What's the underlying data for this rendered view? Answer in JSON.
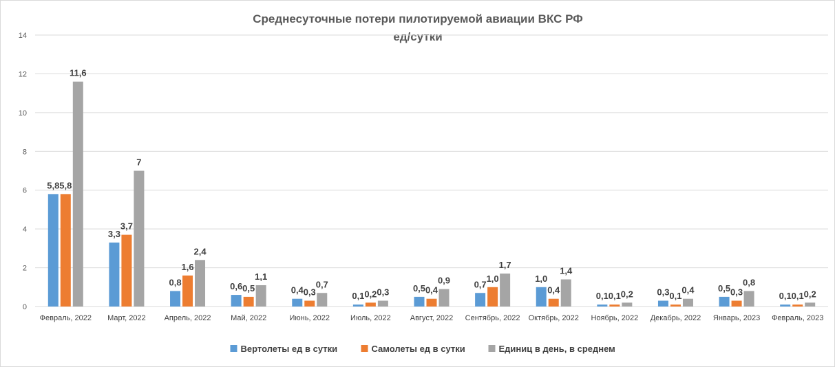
{
  "chart_data": {
    "type": "bar",
    "title": "Среднесуточные потери пилотируемой авиации ВКС РФ",
    "subtitle": "ед/сутки",
    "xlabel": "",
    "ylabel": "",
    "ylim": [
      0,
      14
    ],
    "yticks": [
      0,
      2,
      4,
      6,
      8,
      10,
      12,
      14
    ],
    "grid": true,
    "legend": "bottom",
    "categories": [
      "Февраль, 2022",
      "Март, 2022",
      "Апрель, 2022",
      "Май, 2022",
      "Июнь, 2022",
      "Июль, 2022",
      "Август, 2022",
      "Сентябрь, 2022",
      "Октябрь, 2022",
      "Ноябрь, 2022",
      "Декабрь, 2022",
      "Январь, 2023",
      "Февраль, 2023"
    ],
    "series": [
      {
        "name": "Вертолеты ед в сутки",
        "color": "#5b9bd5",
        "values": [
          5.8,
          3.3,
          0.8,
          0.6,
          0.4,
          0.1,
          0.5,
          0.7,
          1.0,
          0.1,
          0.3,
          0.5,
          0.1
        ],
        "labels": [
          "5,8",
          "3,3",
          "0,8",
          "0,6",
          "0,4",
          "0,1",
          "0,5",
          "0,7",
          "1,0",
          "0,1",
          "0,3",
          "0,5",
          "0,1"
        ]
      },
      {
        "name": "Самолеты ед в сутки",
        "color": "#ed7d31",
        "values": [
          5.8,
          3.7,
          1.6,
          0.5,
          0.3,
          0.2,
          0.4,
          1.0,
          0.4,
          0.1,
          0.1,
          0.3,
          0.1
        ],
        "labels": [
          "5,8",
          "3,7",
          "1,6",
          "0,5",
          "0,3",
          "0,2",
          "0,4",
          "1,0",
          "0,4",
          "0,1",
          "0,1",
          "0,3",
          "0,1"
        ]
      },
      {
        "name": "Единиц в день, в среднем",
        "color": "#a5a5a5",
        "values": [
          11.6,
          7,
          2.4,
          1.1,
          0.7,
          0.3,
          0.9,
          1.7,
          1.4,
          0.2,
          0.4,
          0.8,
          0.2
        ],
        "labels": [
          "11,6",
          "7",
          "2,4",
          "1,1",
          "0,7",
          "0,3",
          "0,9",
          "1,7",
          "1,4",
          "0,2",
          "0,4",
          "0,8",
          "0,2"
        ]
      }
    ]
  }
}
